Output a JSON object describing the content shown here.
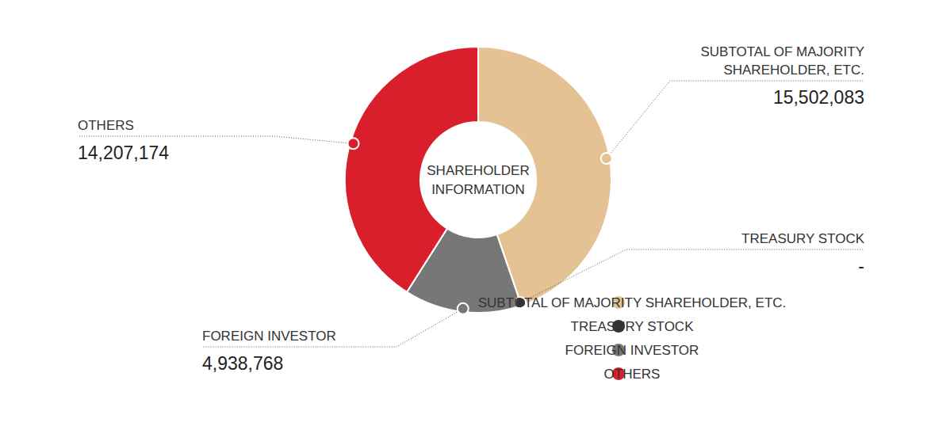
{
  "chart_data": {
    "type": "pie",
    "title": "SHAREHOLDER INFORMATION",
    "categories": [
      "SUBTOTAL OF MAJORITY SHAREHOLDER, ETC.",
      "TREASURY STOCK",
      "FOREIGN INVESTOR",
      "OTHERS"
    ],
    "values": [
      15502083,
      0,
      4938768,
      14207174
    ],
    "value_labels": [
      "15,502,083",
      "-",
      "4,938,768",
      "14,207,174"
    ],
    "colors": [
      "#e4c293",
      "#333333",
      "#777777",
      "#d91f2b"
    ],
    "data_labels": true,
    "legend": "right"
  }
}
